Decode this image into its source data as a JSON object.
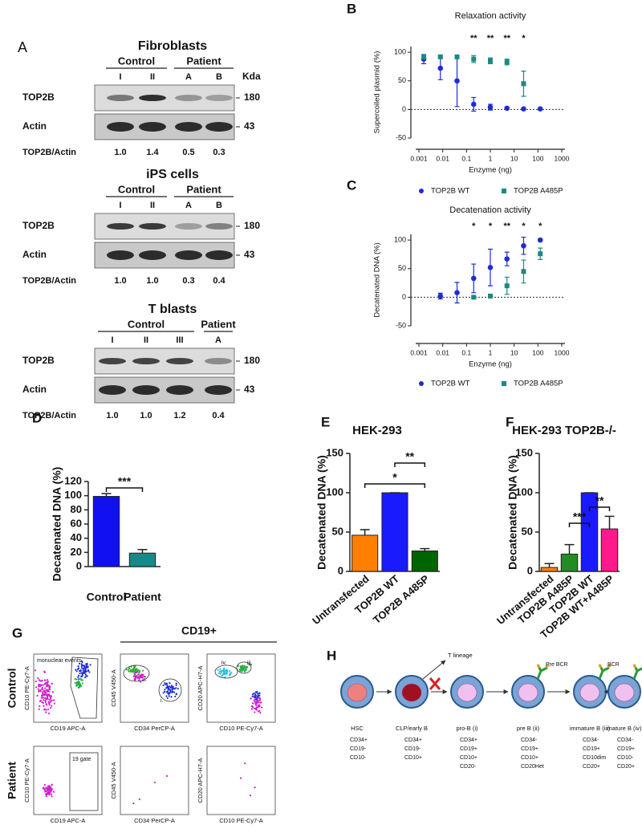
{
  "panel_a": {
    "label": "A",
    "sections": [
      {
        "title": "Fibroblasts",
        "groups": [
          {
            "label": "Control",
            "lanes": [
              "I",
              "II"
            ]
          },
          {
            "label": "Patient",
            "lanes": [
              "A",
              "B"
            ]
          }
        ],
        "kda_header": "Kda",
        "rows": [
          {
            "label": "TOP2B",
            "kda": "180"
          },
          {
            "label": "Actin",
            "kda": "43"
          }
        ],
        "ratio_label": "TOP2B/Actin",
        "ratios": [
          "1.0",
          "1.4",
          "0.5",
          "0.3"
        ]
      },
      {
        "title": "iPS cells",
        "groups": [
          {
            "label": "Control",
            "lanes": [
              "I",
              "II"
            ]
          },
          {
            "label": "Patient",
            "lanes": [
              "A",
              "B"
            ]
          }
        ],
        "rows": [
          {
            "label": "TOP2B",
            "kda": "180"
          },
          {
            "label": "Actin",
            "kda": "43"
          }
        ],
        "ratio_label": "TOP2B/Actin",
        "ratios": [
          "1.0",
          "1.0",
          "0.3",
          "0.4"
        ]
      },
      {
        "title": "T blasts",
        "groups": [
          {
            "label": "Control",
            "lanes": [
              "I",
              "II",
              "III"
            ]
          },
          {
            "label": "Patient",
            "lanes": [
              "A"
            ]
          }
        ],
        "rows": [
          {
            "label": "TOP2B",
            "kda": "180"
          },
          {
            "label": "Actin",
            "kda": "43"
          }
        ],
        "ratio_label": "TOP2B/Actin",
        "ratios": [
          "1.0",
          "1.0",
          "1.2",
          "0.4"
        ]
      }
    ]
  },
  "chart_data": [
    {
      "type": "scatter",
      "panel": "B",
      "title": "Relaxation activity",
      "xlabel": "Enzyme (ng)",
      "ylabel": "Supercoiled plasmid (%)",
      "xscale": "log",
      "xlim": [
        0.001,
        1000
      ],
      "xticks": [
        0.001,
        0.01,
        0.1,
        1,
        10,
        100,
        1000
      ],
      "ylim": [
        -50,
        110
      ],
      "yticks": [
        -50,
        0,
        50,
        100
      ],
      "hline": 0,
      "legend": "bottom",
      "series": [
        {
          "name": "TOP2B WT",
          "color": "#1f2bd6",
          "marker": "circle",
          "x": [
            0.0016,
            0.008,
            0.04,
            0.2,
            1,
            5,
            25,
            125
          ],
          "values": [
            88,
            72,
            50,
            9,
            4,
            2,
            1,
            1
          ],
          "errors": [
            8,
            20,
            45,
            12,
            5,
            2,
            1,
            1
          ]
        },
        {
          "name": "TOP2B A485P",
          "color": "#1a8a80",
          "marker": "square",
          "x": [
            0.0016,
            0.008,
            0.04,
            0.2,
            1,
            5,
            25
          ],
          "values": [
            92,
            92,
            92,
            88,
            85,
            83,
            45
          ],
          "errors": [
            3,
            3,
            3,
            6,
            5,
            5,
            22
          ]
        }
      ],
      "annotations": [
        {
          "x": 0.2,
          "text": "**"
        },
        {
          "x": 1,
          "text": "**"
        },
        {
          "x": 5,
          "text": "**"
        },
        {
          "x": 25,
          "text": "*"
        }
      ]
    },
    {
      "type": "scatter",
      "panel": "C",
      "title": "Decatenation activity",
      "xlabel": "Enzyme (ng)",
      "ylabel": "Decatenated DNA (%)",
      "xscale": "log",
      "xlim": [
        0.001,
        1000
      ],
      "xticks": [
        0.001,
        0.01,
        0.1,
        1,
        10,
        100,
        1000
      ],
      "ylim": [
        -50,
        110
      ],
      "yticks": [
        -50,
        0,
        50,
        100
      ],
      "hline": 0,
      "legend": "bottom",
      "series": [
        {
          "name": "TOP2B WT",
          "color": "#1f2bd6",
          "marker": "circle",
          "x": [
            0.008,
            0.04,
            0.2,
            1,
            5,
            25,
            125
          ],
          "values": [
            2,
            8,
            33,
            52,
            67,
            90,
            100
          ],
          "errors": [
            5,
            18,
            25,
            32,
            12,
            15,
            0
          ]
        },
        {
          "name": "TOP2B A485P",
          "color": "#1a8a80",
          "marker": "square",
          "x": [
            0.2,
            1,
            5,
            25,
            125
          ],
          "values": [
            0,
            2,
            20,
            45,
            76
          ],
          "errors": [
            2,
            3,
            15,
            20,
            10
          ]
        }
      ],
      "annotations": [
        {
          "x": 0.2,
          "text": "*"
        },
        {
          "x": 1,
          "text": "*"
        },
        {
          "x": 5,
          "text": "**"
        },
        {
          "x": 25,
          "text": "*"
        },
        {
          "x": 125,
          "text": "*"
        }
      ]
    },
    {
      "type": "bar",
      "panel": "D",
      "ylabel": "Decatenated DNA (%)",
      "categories": [
        "Control",
        "Patient"
      ],
      "values": [
        99,
        19
      ],
      "errors": [
        4,
        5
      ],
      "colors": [
        "#1010f0",
        "#168a8a"
      ],
      "ylim": [
        0,
        120
      ],
      "yticks": [
        0,
        20,
        40,
        60,
        80,
        100,
        120
      ],
      "significance": [
        {
          "between": [
            "Control",
            "Patient"
          ],
          "text": "***"
        }
      ]
    },
    {
      "type": "bar",
      "panel": "E",
      "title": "HEK-293",
      "ylabel": "Decatenated DNA (%)",
      "categories": [
        "Untransfected",
        "TOP2B WT",
        "TOP2B A485P"
      ],
      "values": [
        46,
        100,
        26
      ],
      "errors": [
        7,
        0,
        3
      ],
      "colors": [
        "#ff8000",
        "#1a1aff",
        "#006400"
      ],
      "ylim": [
        0,
        150
      ],
      "yticks": [
        0,
        50,
        100,
        150
      ],
      "xtick_rotation": -40,
      "significance": [
        {
          "between": [
            "Untransfected",
            "TOP2B A485P"
          ],
          "text": "*"
        },
        {
          "between": [
            "TOP2B WT",
            "TOP2B A485P"
          ],
          "text": "**"
        }
      ]
    },
    {
      "type": "bar",
      "panel": "F",
      "title": "HEK-293 TOP2B-/-",
      "ylabel": "Decatenated DNA (%)",
      "categories": [
        "Untransfected",
        "TOP2B A485P",
        "TOP2B WT",
        "TOP2B WT+A485P"
      ],
      "values": [
        5,
        22,
        100,
        54
      ],
      "errors": [
        5,
        12,
        0,
        16
      ],
      "colors": [
        "#ff8000",
        "#228b22",
        "#1a1aff",
        "#ff1a8c"
      ],
      "ylim": [
        0,
        150
      ],
      "yticks": [
        0,
        50,
        100,
        150
      ],
      "xtick_rotation": -40,
      "significance": [
        {
          "between": [
            "TOP2B A485P",
            "TOP2B WT"
          ],
          "text": "***"
        },
        {
          "between": [
            "TOP2B WT",
            "TOP2B WT+A485P"
          ],
          "text": "**"
        }
      ]
    }
  ],
  "panel_g": {
    "label": "G",
    "header": "CD19+",
    "rows": [
      {
        "label": "Control",
        "plots": [
          {
            "y_axis": "CD10 PE-Cy7-A",
            "x_axis": "CD19 APC-A",
            "gates": [
              "monuclear events"
            ]
          },
          {
            "y_axis": "CD45 V450-A",
            "x_axis": "CD34 PerCP-A",
            "gates": [
              "ii.",
              "i."
            ]
          },
          {
            "y_axis": "CD20 APC-H7-A",
            "x_axis": "CD10 PE-Cy7-A",
            "gates": [
              "iv.",
              "iii."
            ]
          }
        ]
      },
      {
        "label": "Patient",
        "plots": [
          {
            "y_axis": "CD10 PE-Cy7-A",
            "x_axis": "CD19 APC-A",
            "gates": [
              "19 gate"
            ]
          },
          {
            "y_axis": "CD45 V450-A",
            "x_axis": "CD34 PerCP-A",
            "gates": []
          },
          {
            "y_axis": "CD20 APC-H7-A",
            "x_axis": "CD10 PE-Cy7-A",
            "gates": []
          }
        ]
      }
    ]
  },
  "panel_h": {
    "label": "H",
    "branch": "T lineage",
    "stages": [
      {
        "name": "HSC",
        "markers": [
          "CD34+",
          "CD19-",
          "CD10-"
        ]
      },
      {
        "name": "CLP/early B",
        "markers": [
          "CD34+",
          "CD19-",
          "CD10+"
        ]
      },
      {
        "name": "pro-B (i)",
        "markers": [
          "CD34+",
          "CD19+",
          "CD10+",
          "CD20-"
        ]
      },
      {
        "name": "pre B (ii)",
        "receptor": "Pre BCR",
        "markers": [
          "CD34-",
          "CD19+",
          "CD10+",
          "CD20Het"
        ]
      },
      {
        "name": "immature B (iii)",
        "receptor": "BCR",
        "markers": [
          "CD34-",
          "CD19+",
          "CD10dim",
          "CD20+"
        ]
      },
      {
        "name": "mature B (iv)",
        "receptor": "BCR",
        "markers": [
          "CD34-",
          "CD19+",
          "CD10-",
          "CD20+"
        ]
      }
    ]
  }
}
